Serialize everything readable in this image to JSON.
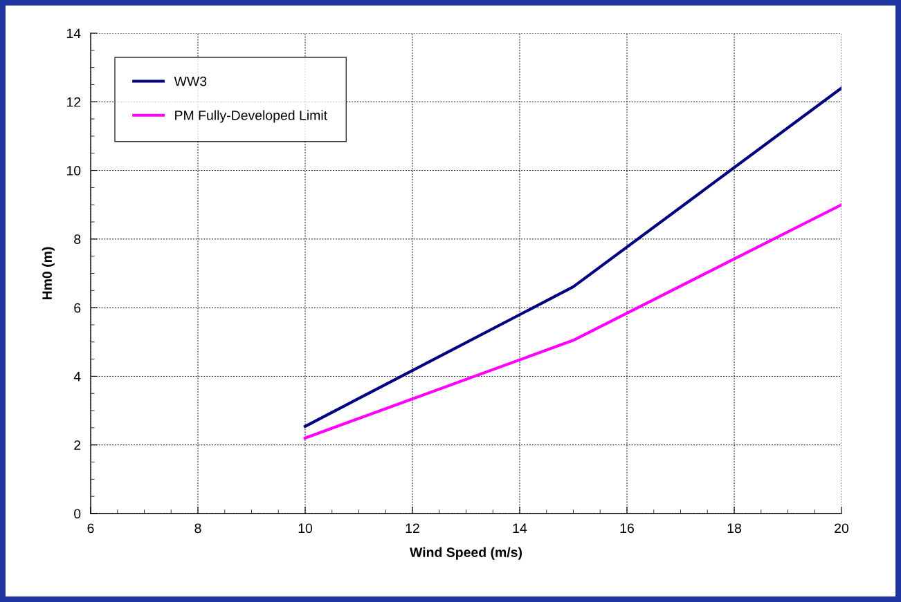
{
  "chart_data": {
    "type": "line",
    "xlabel": "Wind Speed (m/s)",
    "ylabel": "Hm0 (m)",
    "x": [
      10,
      15,
      20
    ],
    "series": [
      {
        "name": "WW3",
        "color": "#000080",
        "values": [
          2.54,
          6.61,
          12.4
        ]
      },
      {
        "name": "PM Fully-Developed Limit",
        "color": "#ff00ff",
        "values": [
          2.2,
          5.05,
          9.0
        ]
      }
    ],
    "xlim": [
      6,
      20
    ],
    "xticks": [
      6,
      8,
      10,
      12,
      14,
      16,
      18,
      20
    ],
    "ylim": [
      0,
      14
    ],
    "yticks": [
      0,
      2,
      4,
      6,
      8,
      10,
      12,
      14
    ],
    "grid": true,
    "legend": "top left",
    "marker": "none",
    "line_style": "solid"
  }
}
